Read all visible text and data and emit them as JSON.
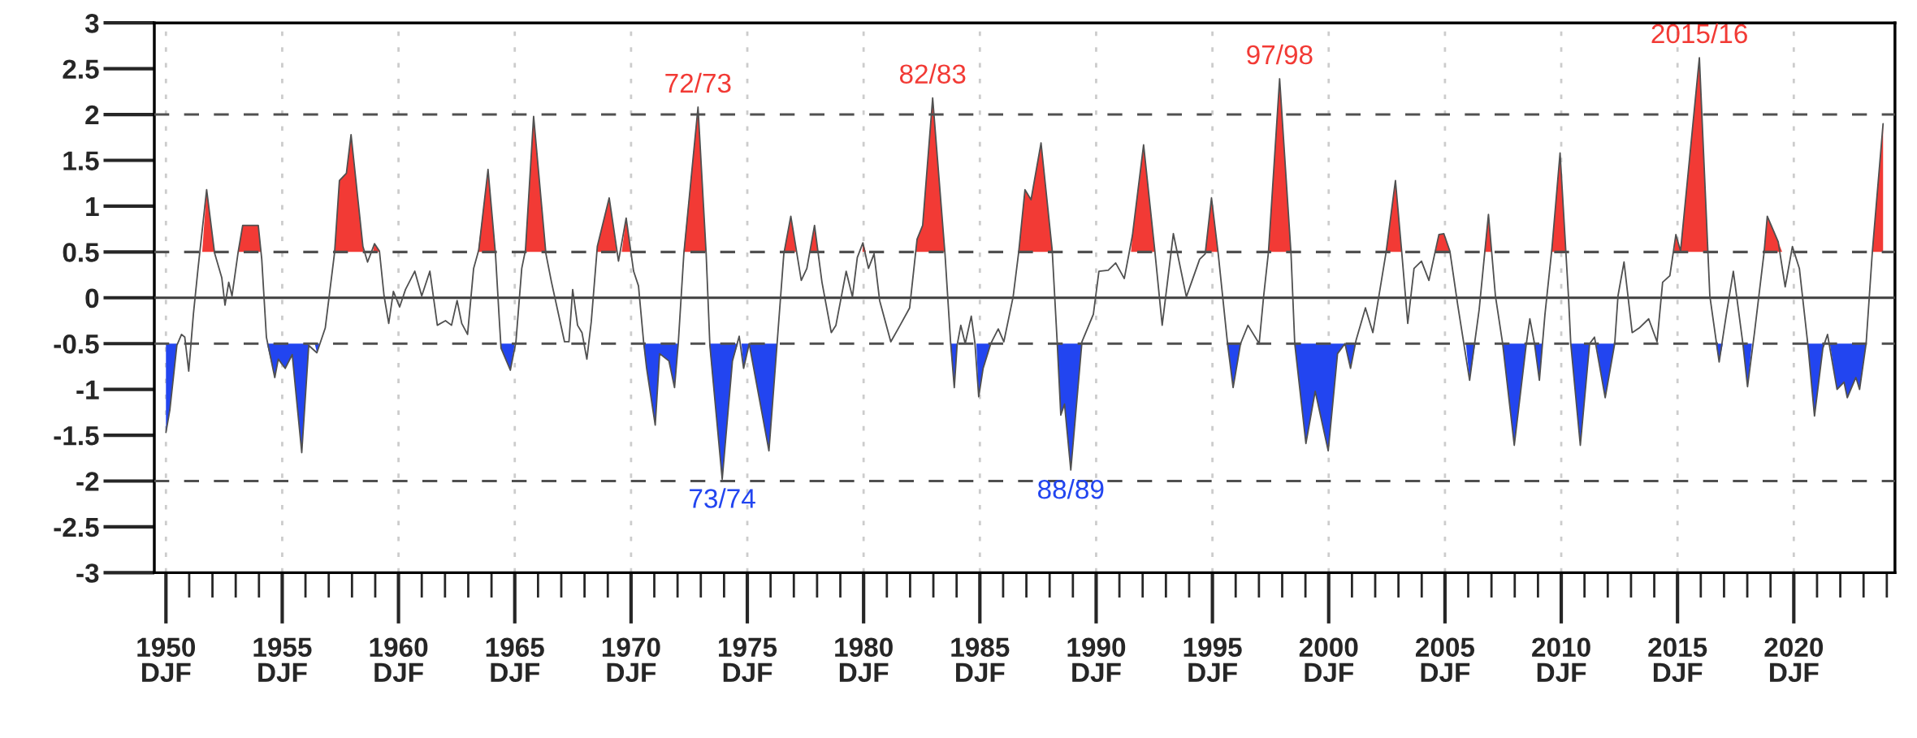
{
  "chart_data": {
    "type": "line",
    "xlim": [
      1949.5,
      2024.35
    ],
    "ylim": [
      -3,
      3
    ],
    "xticks": [
      {
        "value": 1950,
        "label": "1950\nDJF"
      },
      {
        "value": 1955,
        "label": "1955\nDJF"
      },
      {
        "value": 1960,
        "label": "1960\nDJF"
      },
      {
        "value": 1965,
        "label": "1965\nDJF"
      },
      {
        "value": 1970,
        "label": "1970\nDJF"
      },
      {
        "value": 1975,
        "label": "1975\nDJF"
      },
      {
        "value": 1980,
        "label": "1980\nDJF"
      },
      {
        "value": 1985,
        "label": "1985\nDJF"
      },
      {
        "value": 1990,
        "label": "1990\nDJF"
      },
      {
        "value": 1995,
        "label": "1995\nDJF"
      },
      {
        "value": 2000,
        "label": "2000\nDJF"
      },
      {
        "value": 2005,
        "label": "2005\nDJF"
      },
      {
        "value": 2010,
        "label": "2010\nDJF"
      },
      {
        "value": 2015,
        "label": "2015\nDJF"
      },
      {
        "value": 2020,
        "label": "2020\nDJF"
      }
    ],
    "yticks": [
      -3,
      -2.5,
      -2,
      -1.5,
      -1,
      -0.5,
      0,
      0.5,
      1,
      1.5,
      2,
      2.5,
      3
    ],
    "grid": "x",
    "series": [
      {
        "color": "#505050",
        "x": [
          1950.0,
          1950.17,
          1950.47,
          1950.67,
          1950.81,
          1950.98,
          1951.18,
          1951.38,
          1951.75,
          1952.09,
          1952.4,
          1952.54,
          1952.7,
          1952.84,
          1953.1,
          1953.3,
          1953.97,
          1954.12,
          1954.32,
          1954.68,
          1954.83,
          1955.13,
          1955.43,
          1955.84,
          1956.14,
          1956.49,
          1956.85,
          1957.25,
          1957.46,
          1957.76,
          1957.96,
          1958.47,
          1958.67,
          1958.97,
          1959.18,
          1959.38,
          1959.58,
          1959.78,
          1960.05,
          1960.3,
          1960.7,
          1961.0,
          1961.35,
          1961.67,
          1962.02,
          1962.28,
          1962.52,
          1962.72,
          1962.97,
          1963.23,
          1963.45,
          1963.85,
          1964.17,
          1964.33,
          1964.41,
          1964.81,
          1965.05,
          1965.3,
          1965.46,
          1965.81,
          1966.34,
          1966.58,
          1967.14,
          1967.33,
          1967.49,
          1967.7,
          1967.89,
          1968.1,
          1968.29,
          1968.55,
          1969.06,
          1969.46,
          1969.79,
          1970.11,
          1970.32,
          1970.54,
          1970.67,
          1971.04,
          1971.23,
          1971.63,
          1971.87,
          1972.03,
          1972.27,
          1972.88,
          1973.23,
          1973.39,
          1973.92,
          1974.36,
          1974.65,
          1974.84,
          1975.08,
          1975.93,
          1976.28,
          1976.57,
          1976.87,
          1977.32,
          1977.56,
          1977.89,
          1978.21,
          1978.61,
          1978.81,
          1979.25,
          1979.52,
          1979.73,
          1979.97,
          1980.21,
          1980.45,
          1980.69,
          1981.17,
          1981.57,
          1981.98,
          1982.3,
          1982.54,
          1982.97,
          1983.5,
          1983.74,
          1983.9,
          1984.02,
          1984.18,
          1984.37,
          1984.63,
          1984.79,
          1984.95,
          1985.14,
          1985.47,
          1985.79,
          1986.03,
          1986.43,
          1986.67,
          1986.94,
          1987.2,
          1987.63,
          1988.11,
          1988.32,
          1988.48,
          1988.64,
          1988.91,
          1989.39,
          1989.88,
          1990.12,
          1990.52,
          1990.84,
          1991.21,
          1991.56,
          1992.04,
          1992.52,
          1992.84,
          1993.32,
          1993.88,
          1994.45,
          1994.69,
          1994.96,
          1995.25,
          1995.65,
          1995.89,
          1996.21,
          1996.53,
          1997.01,
          1997.2,
          1997.41,
          1997.89,
          1998.38,
          1998.54,
          1999.02,
          1999.42,
          1999.98,
          2000.38,
          2000.7,
          2000.94,
          2001.18,
          2001.58,
          2001.9,
          2002.47,
          2002.87,
          2003.14,
          2003.4,
          2003.67,
          2003.99,
          2004.31,
          2004.74,
          2004.95,
          2005.21,
          2005.55,
          2006.06,
          2006.47,
          2006.87,
          2007.17,
          2007.48,
          2007.98,
          2008.49,
          2008.65,
          2008.85,
          2009.06,
          2009.3,
          2009.6,
          2009.95,
          2010.31,
          2010.41,
          2010.82,
          2011.22,
          2011.43,
          2011.89,
          2012.3,
          2012.44,
          2012.7,
          2013.05,
          2013.35,
          2013.76,
          2014.12,
          2014.36,
          2014.67,
          2014.93,
          2015.13,
          2015.94,
          2016.39,
          2016.79,
          2017.1,
          2017.4,
          2017.81,
          2018.01,
          2018.31,
          2018.72,
          2018.86,
          2019.33,
          2019.63,
          2019.94,
          2020.24,
          2020.6,
          2020.89,
          2021.25,
          2021.45,
          2021.86,
          2022.16,
          2022.3,
          2022.67,
          2022.83,
          2023.11,
          2023.38,
          2023.84
        ],
        "values": [
          -1.47,
          -1.22,
          -0.52,
          -0.4,
          -0.43,
          -0.8,
          -0.18,
          0.32,
          1.18,
          0.49,
          0.22,
          -0.08,
          0.17,
          0.02,
          0.49,
          0.79,
          0.79,
          0.42,
          -0.43,
          -0.87,
          -0.67,
          -0.77,
          -0.62,
          -1.69,
          -0.52,
          -0.6,
          -0.33,
          0.49,
          1.28,
          1.36,
          1.78,
          0.56,
          0.39,
          0.59,
          0.51,
          0.02,
          -0.28,
          0.07,
          -0.1,
          0.09,
          0.29,
          0.02,
          0.29,
          -0.3,
          -0.25,
          -0.3,
          -0.03,
          -0.28,
          -0.4,
          0.32,
          0.52,
          1.4,
          0.48,
          -0.22,
          -0.55,
          -0.79,
          -0.48,
          0.32,
          0.52,
          1.98,
          0.48,
          0.17,
          -0.48,
          -0.48,
          0.09,
          -0.3,
          -0.38,
          -0.67,
          -0.26,
          0.56,
          1.09,
          0.4,
          0.87,
          0.29,
          0.13,
          -0.48,
          -0.77,
          -1.39,
          -0.61,
          -0.69,
          -0.98,
          -0.5,
          0.48,
          2.08,
          0.48,
          -0.52,
          -1.98,
          -0.69,
          -0.42,
          -0.77,
          -0.5,
          -1.67,
          -0.5,
          0.48,
          0.89,
          0.19,
          0.32,
          0.79,
          0.17,
          -0.38,
          -0.3,
          0.29,
          0.01,
          0.44,
          0.6,
          0.32,
          0.48,
          -0.03,
          -0.48,
          -0.3,
          -0.11,
          0.64,
          0.79,
          2.18,
          0.48,
          -0.48,
          -0.98,
          -0.52,
          -0.3,
          -0.5,
          -0.2,
          -0.5,
          -1.08,
          -0.77,
          -0.5,
          -0.34,
          -0.48,
          0.01,
          0.5,
          1.18,
          1.07,
          1.69,
          0.52,
          -0.46,
          -1.28,
          -1.16,
          -1.88,
          -0.48,
          -0.18,
          0.29,
          0.3,
          0.38,
          0.21,
          0.68,
          1.67,
          0.52,
          -0.3,
          0.7,
          0.01,
          0.42,
          0.48,
          1.09,
          0.48,
          -0.5,
          -0.98,
          -0.5,
          -0.3,
          -0.5,
          0.01,
          0.5,
          2.39,
          0.48,
          -0.5,
          -1.59,
          -1.02,
          -1.67,
          -0.61,
          -0.5,
          -0.77,
          -0.46,
          -0.11,
          -0.38,
          0.5,
          1.28,
          0.5,
          -0.28,
          0.32,
          0.4,
          0.19,
          0.69,
          0.7,
          0.51,
          -0.08,
          -0.9,
          -0.13,
          0.91,
          0.02,
          -0.5,
          -1.61,
          -0.52,
          -0.23,
          -0.5,
          -0.9,
          -0.18,
          0.54,
          1.58,
          0.02,
          -0.5,
          -1.61,
          -0.5,
          -0.43,
          -1.09,
          -0.5,
          0.02,
          0.39,
          -0.38,
          -0.33,
          -0.23,
          -0.48,
          0.17,
          0.24,
          0.69,
          0.51,
          2.62,
          0.02,
          -0.7,
          -0.18,
          0.29,
          -0.5,
          -0.97,
          -0.38,
          0.49,
          0.89,
          0.61,
          0.12,
          0.56,
          0.32,
          -0.5,
          -1.29,
          -0.55,
          -0.4,
          -1.0,
          -0.92,
          -1.09,
          -0.87,
          -1.0,
          -0.5,
          0.51,
          1.9
        ]
      },
      {
        "type": "area",
        "color": "#f23a35",
        "x": [
          1951.56,
          1951.75,
          1952.08,
          null,
          1953.1,
          1953.3,
          1953.97,
          1954.09,
          null,
          1957.25,
          1957.46,
          1957.76,
          1957.96,
          1958.47,
          1958.5,
          null,
          1958.9,
          1958.97,
          1959.18,
          1959.2,
          null,
          1963.42,
          1963.85,
          1964.17,
          null,
          1965.45,
          1965.81,
          1966.33,
          null,
          1968.52,
          1968.55,
          1969.06,
          1969.38,
          null,
          1969.6,
          1969.79,
          1970.0,
          null,
          1972.26,
          1972.88,
          1973.23,
          null,
          1976.58,
          1976.87,
          1977.1,
          null,
          1977.7,
          1977.89,
          1978.05,
          null,
          1979.95,
          1979.97,
          1980.1,
          null,
          1982.26,
          1982.3,
          1982.54,
          1982.97,
          1983.49,
          null,
          1986.67,
          1986.94,
          1987.2,
          1987.63,
          1988.12,
          null,
          1991.5,
          1991.56,
          1992.04,
          1992.53,
          null,
          1994.7,
          1994.96,
          1995.24,
          null,
          1997.41,
          1997.89,
          1998.37,
          null,
          2002.47,
          2002.87,
          2003.14,
          null,
          2004.6,
          2004.74,
          2004.95,
          2005.21,
          null,
          2006.7,
          2006.87,
          2007.0,
          null,
          2009.58,
          2009.6,
          2009.95,
          2010.2,
          null,
          2014.85,
          2014.93,
          2015.13,
          2015.94,
          2016.3,
          null,
          2018.72,
          2018.86,
          2019.33,
          2019.5,
          null,
          2023.38,
          2023.84
        ],
        "values": [
          0.5,
          1.18,
          0.5,
          null,
          0.5,
          0.79,
          0.79,
          0.5,
          null,
          0.5,
          1.28,
          1.36,
          1.78,
          0.56,
          0.5,
          null,
          0.5,
          0.59,
          0.51,
          0.5,
          null,
          0.5,
          1.4,
          0.5,
          null,
          0.5,
          1.98,
          0.5,
          null,
          0.5,
          0.56,
          1.09,
          0.5,
          null,
          0.5,
          0.87,
          0.5,
          null,
          0.5,
          2.08,
          0.5,
          null,
          0.5,
          0.89,
          0.5,
          null,
          0.5,
          0.79,
          0.5,
          null,
          0.5,
          0.6,
          0.5,
          null,
          0.5,
          0.64,
          0.79,
          2.18,
          0.5,
          null,
          0.5,
          1.18,
          1.07,
          1.69,
          0.5,
          null,
          0.5,
          0.68,
          1.67,
          0.5,
          null,
          0.5,
          1.09,
          0.5,
          null,
          0.5,
          2.39,
          0.5,
          null,
          0.5,
          1.28,
          0.5,
          null,
          0.5,
          0.69,
          0.7,
          0.5,
          null,
          0.5,
          0.91,
          0.5,
          null,
          0.5,
          0.54,
          1.58,
          0.5,
          null,
          0.5,
          0.69,
          0.51,
          2.62,
          0.5,
          null,
          0.5,
          0.89,
          0.61,
          0.5,
          null,
          0.51,
          1.9
        ]
      },
      {
        "type": "area",
        "color": "#2245f0",
        "x": [
          1950.0,
          1950.17,
          1950.47,
          1950.5,
          null,
          1954.34,
          1954.68,
          1954.83,
          1955.13,
          1955.43,
          1955.84,
          1956.14,
          1956.15,
          null,
          1956.4,
          1956.49,
          1956.6,
          null,
          1964.4,
          1964.41,
          1964.81,
          1965.0,
          null,
          1970.53,
          1970.67,
          1971.04,
          1971.23,
          1971.63,
          1971.87,
          1972.03,
          null,
          1973.37,
          1973.92,
          1974.36,
          1974.6,
          null,
          1974.75,
          1974.84,
          1975.08,
          1975.93,
          1976.28,
          null,
          1983.73,
          1983.9,
          1984.02,
          1984.05,
          null,
          1984.85,
          1984.95,
          1985.14,
          1985.47,
          null,
          1988.33,
          1988.48,
          1988.64,
          1988.91,
          1989.38,
          null,
          1995.65,
          1995.89,
          1996.21,
          null,
          1998.54,
          1999.02,
          1999.42,
          1999.98,
          2000.38,
          2000.7,
          2000.94,
          2001.15,
          null,
          2005.9,
          2006.06,
          2006.3,
          null,
          2007.48,
          2007.98,
          2008.49,
          2008.5,
          null,
          2008.85,
          2009.06,
          2009.2,
          null,
          2010.41,
          2010.82,
          2011.22,
          null,
          2011.5,
          2011.89,
          2012.3,
          null,
          2016.65,
          2016.79,
          2016.95,
          null,
          2017.81,
          2018.01,
          2018.2,
          null,
          2020.6,
          2020.89,
          2021.25,
          2021.3,
          null,
          2021.55,
          2021.86,
          2022.16,
          2022.3,
          2022.67,
          2022.83,
          2023.11
        ],
        "values": [
          -1.47,
          -1.22,
          -0.52,
          -0.5,
          null,
          -0.5,
          -0.87,
          -0.67,
          -0.77,
          -0.62,
          -1.69,
          -0.52,
          -0.5,
          null,
          -0.5,
          -0.6,
          -0.5,
          null,
          -0.5,
          -0.55,
          -0.79,
          -0.5,
          null,
          -0.5,
          -0.77,
          -1.39,
          -0.61,
          -0.69,
          -0.98,
          -0.5,
          null,
          -0.5,
          -1.98,
          -0.69,
          -0.5,
          null,
          -0.5,
          -0.77,
          -0.5,
          -1.67,
          -0.5,
          null,
          -0.5,
          -0.98,
          -0.52,
          -0.5,
          null,
          -0.5,
          -1.08,
          -0.77,
          -0.5,
          null,
          -0.5,
          -1.28,
          -1.16,
          -1.88,
          -0.5,
          null,
          -0.5,
          -0.98,
          -0.5,
          null,
          -0.5,
          -1.59,
          -1.02,
          -1.67,
          -0.61,
          -0.5,
          -0.77,
          -0.5,
          null,
          -0.5,
          -0.9,
          -0.5,
          null,
          -0.5,
          -1.61,
          -0.52,
          -0.5,
          null,
          -0.5,
          -0.9,
          -0.5,
          null,
          -0.5,
          -1.61,
          -0.5,
          null,
          -0.5,
          -1.09,
          -0.5,
          null,
          -0.5,
          -0.7,
          -0.5,
          null,
          -0.5,
          -0.97,
          -0.5,
          null,
          -0.5,
          -1.29,
          -0.55,
          -0.5,
          null,
          -0.5,
          -1.0,
          -0.92,
          -1.09,
          -0.87,
          -1.0,
          -0.5
        ]
      }
    ],
    "ref_lines": [
      {
        "axis": "y",
        "value": 2,
        "color": "#505050",
        "line_style": "dashed"
      },
      {
        "axis": "y",
        "value": 0.5,
        "color": "#505050",
        "line_style": "dashed"
      },
      {
        "axis": "y",
        "value": 0,
        "color": "#404040",
        "line_style": "solid"
      },
      {
        "axis": "y",
        "value": -0.5,
        "color": "#505050",
        "line_style": "dashed"
      },
      {
        "axis": "y",
        "value": -2,
        "color": "#505050",
        "line_style": "dashed"
      }
    ],
    "annotations": [
      {
        "text": "72/73",
        "x": 1972.88,
        "y": 2.08
      },
      {
        "text": "82/83",
        "x": 1982.97,
        "y": 2.18
      },
      {
        "text": "97/98",
        "x": 1997.89,
        "y": 2.39
      },
      {
        "text": "2015/16",
        "x": 2015.94,
        "y": 2.62
      },
      {
        "text": "73/74",
        "x": 1973.92,
        "y": -1.98
      },
      {
        "text": "88/89",
        "x": 1988.91,
        "y": -1.88
      }
    ]
  }
}
